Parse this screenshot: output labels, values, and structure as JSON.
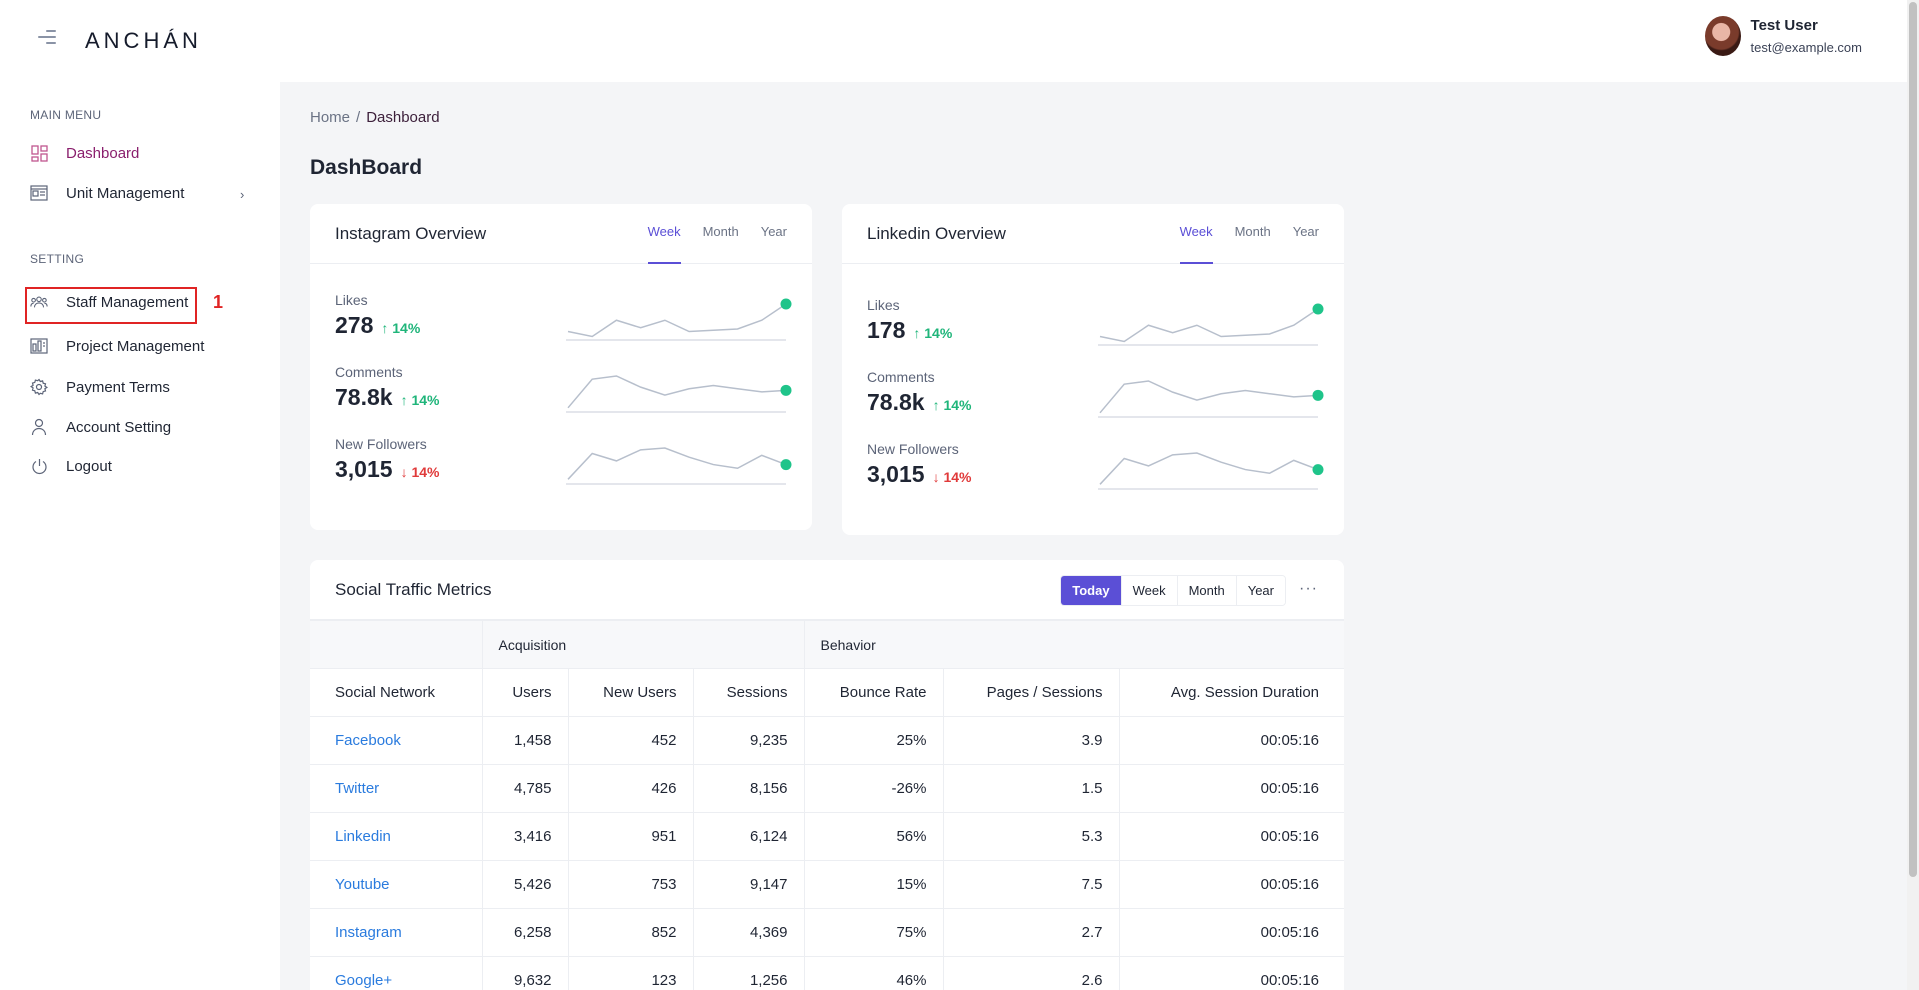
{
  "brand": {
    "logo": "ANCHÁN"
  },
  "user": {
    "name": "Test User",
    "email": "test@example.com"
  },
  "sidebar": {
    "main_menu_label": "MAIN MENU",
    "setting_label": "SETTING",
    "items": [
      {
        "label": "Dashboard",
        "icon": "dashboard-icon",
        "active": true
      },
      {
        "label": "Unit Management",
        "icon": "unit-icon",
        "has_children": true
      },
      {
        "label": "Staff Management",
        "icon": "staff-icon"
      },
      {
        "label": "Project Management",
        "icon": "project-icon"
      },
      {
        "label": "Payment Terms",
        "icon": "gear-icon"
      },
      {
        "label": "Account Setting",
        "icon": "user-icon"
      },
      {
        "label": "Logout",
        "icon": "power-icon"
      }
    ],
    "highlight_label": "1"
  },
  "breadcrumb": {
    "home": "Home",
    "separator": "/",
    "current": "Dashboard"
  },
  "page_title": "DashBoard",
  "instagram": {
    "title": "Instagram Overview",
    "tabs": [
      "Week",
      "Month",
      "Year"
    ],
    "active_tab": "Week",
    "stats": [
      {
        "label": "Likes",
        "value": "278",
        "change": "14%",
        "direction": "up",
        "trend": [
          6,
          2,
          15,
          9,
          15,
          6,
          7,
          8,
          15,
          28
        ]
      },
      {
        "label": "Comments",
        "value": "78.8k",
        "change": "14%",
        "direction": "up",
        "trend": [
          2,
          20,
          22,
          15,
          10,
          14,
          16,
          14,
          12,
          13
        ]
      },
      {
        "label": "New Followers",
        "value": "3,015",
        "change": "14%",
        "direction": "down",
        "trend": [
          2,
          16,
          12,
          18,
          19,
          14,
          10,
          8,
          15,
          10
        ]
      }
    ]
  },
  "linkedin": {
    "title": "Linkedin Overview",
    "tabs": [
      "Week",
      "Month",
      "Year"
    ],
    "active_tab": "Week",
    "stats": [
      {
        "label": "Likes",
        "value": "178",
        "change": "14%",
        "direction": "up",
        "trend": [
          6,
          2,
          15,
          9,
          15,
          6,
          7,
          8,
          15,
          28
        ]
      },
      {
        "label": "Comments",
        "value": "78.8k",
        "change": "14%",
        "direction": "up",
        "trend": [
          2,
          20,
          22,
          15,
          10,
          14,
          16,
          14,
          12,
          13
        ]
      },
      {
        "label": "New Followers",
        "value": "3,015",
        "change": "14%",
        "direction": "down",
        "trend": [
          2,
          16,
          12,
          18,
          19,
          14,
          10,
          8,
          15,
          10
        ]
      }
    ]
  },
  "traffic": {
    "title": "Social Traffic Metrics",
    "buttons": [
      "Today",
      "Week",
      "Month",
      "Year"
    ],
    "active_button": "Today",
    "more": "···",
    "groups": [
      "Acquisition",
      "Behavior"
    ],
    "columns": [
      "Social Network",
      "Users",
      "New Users",
      "Sessions",
      "Bounce Rate",
      "Pages / Sessions",
      "Avg. Session Duration"
    ],
    "rows": [
      [
        "Facebook",
        "1,458",
        "452",
        "9,235",
        "25%",
        "3.9",
        "00:05:16"
      ],
      [
        "Twitter",
        "4,785",
        "426",
        "8,156",
        "-26%",
        "1.5",
        "00:05:16"
      ],
      [
        "Linkedin",
        "3,416",
        "951",
        "6,124",
        "56%",
        "5.3",
        "00:05:16"
      ],
      [
        "Youtube",
        "5,426",
        "753",
        "9,147",
        "15%",
        "7.5",
        "00:05:16"
      ],
      [
        "Instagram",
        "6,258",
        "852",
        "4,369",
        "75%",
        "2.7",
        "00:05:16"
      ],
      [
        "Google+",
        "9,632",
        "123",
        "1,256",
        "46%",
        "2.6",
        "00:05:16"
      ]
    ]
  },
  "colors": {
    "accent": "#5b4fd6",
    "active_nav": "#8a1f6d",
    "up": "#1fb57a",
    "down": "#e03a3a",
    "link": "#2a7bde",
    "spark_dot": "#1fc48a",
    "highlight_box": "#e02424"
  }
}
